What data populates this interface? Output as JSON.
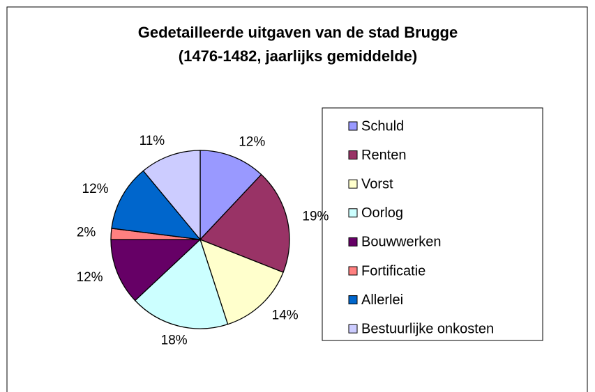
{
  "chart_data": {
    "type": "pie",
    "title": [
      "Gedetailleerde uitgaven van de stad Brugge",
      "(1476-1482, jaarlijks gemiddelde)"
    ],
    "categories": [
      "Schuld",
      "Renten",
      "Vorst",
      "Oorlog",
      "Bouwwerken",
      "Fortificatie",
      "Allerlei",
      "Bestuurlijke onkosten"
    ],
    "values": [
      12,
      19,
      14,
      18,
      12,
      2,
      12,
      11
    ],
    "value_labels": [
      "12%",
      "19%",
      "14%",
      "18%",
      "12%",
      "2%",
      "12%",
      "11%"
    ],
    "colors": [
      "#9999ff",
      "#993366",
      "#ffffcc",
      "#ccffff",
      "#660066",
      "#ff8080",
      "#0066cc",
      "#ccccff"
    ],
    "legend": "right"
  }
}
